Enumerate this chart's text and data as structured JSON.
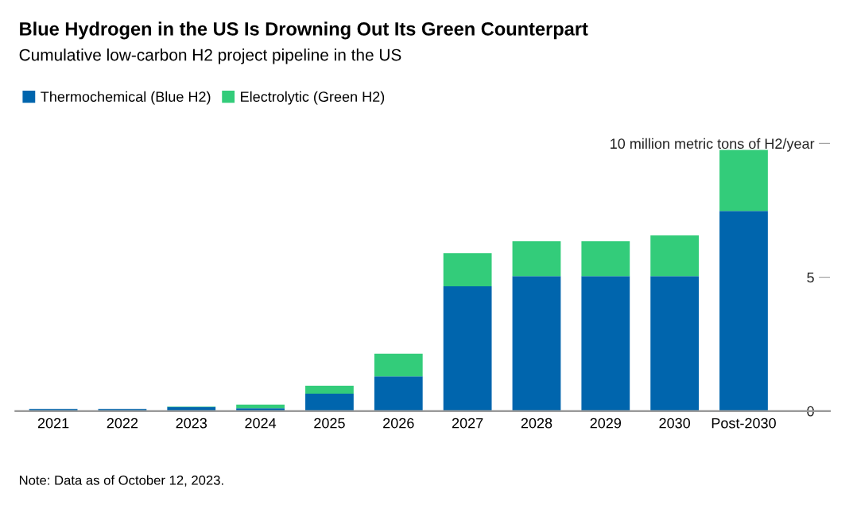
{
  "chart_data": {
    "type": "bar",
    "title": "Blue Hydrogen in the US Is Drowning Out Its Green Counterpart",
    "subtitle": "Cumulative low-carbon H2 project pipeline in the US",
    "categories": [
      "2021",
      "2022",
      "2023",
      "2024",
      "2025",
      "2026",
      "2027",
      "2028",
      "2029",
      "2030",
      "Post-2030"
    ],
    "stacked": true,
    "series": [
      {
        "name": "Thermochemical (Blue H2)",
        "color": "#0065ad",
        "values": [
          0.08,
          0.08,
          0.15,
          0.11,
          0.65,
          1.3,
          4.66,
          5.04,
          5.04,
          5.04,
          7.48
        ]
      },
      {
        "name": "Electrolytic (Green H2)",
        "color": "#33cc7a",
        "values": [
          0,
          0,
          0.02,
          0.13,
          0.3,
          0.84,
          1.24,
          1.31,
          1.31,
          1.52,
          2.28
        ]
      }
    ],
    "ylim": [
      0,
      10
    ],
    "yticks": [
      0,
      5,
      {
        "value": 10,
        "label": "10 million metric tons of H2/year"
      }
    ],
    "grid": false,
    "legend": "top left",
    "annotations": [
      "Note: Data as of October 12, 2023."
    ]
  }
}
